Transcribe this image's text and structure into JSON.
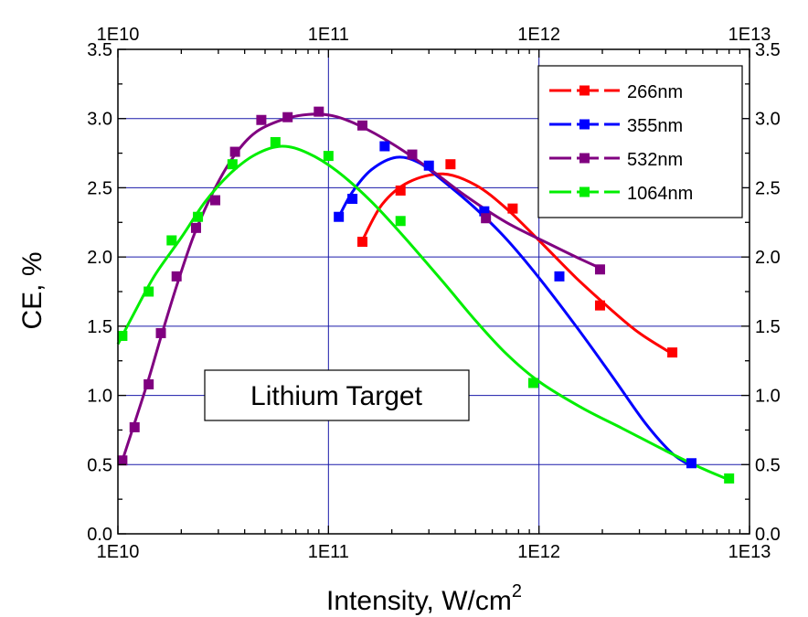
{
  "chart_data": {
    "type": "scatter",
    "title": "",
    "xlabel": "Intensity, W/cm",
    "xlabel_superscript": "2",
    "ylabel": "CE, %",
    "x_scale": "log",
    "xlim": [
      10000000000.0,
      10000000000000.0
    ],
    "ylim": [
      0,
      3.5
    ],
    "x_ticks": [
      {
        "value": 10000000000.0,
        "label": "1E10"
      },
      {
        "value": 100000000000.0,
        "label": "1E11"
      },
      {
        "value": 1000000000000.0,
        "label": "1E12"
      },
      {
        "value": 10000000000000.0,
        "label": "1E13"
      }
    ],
    "y_ticks": [
      {
        "value": 0,
        "label": "0.0"
      },
      {
        "value": 0.5,
        "label": "0.5"
      },
      {
        "value": 1.0,
        "label": "1.0"
      },
      {
        "value": 1.5,
        "label": "1.5"
      },
      {
        "value": 2.0,
        "label": "2.0"
      },
      {
        "value": 2.5,
        "label": "2.5"
      },
      {
        "value": 3.0,
        "label": "3.0"
      },
      {
        "value": 3.5,
        "label": "3.5"
      }
    ],
    "grid": true,
    "grid_color": "#1a1aaa",
    "mirror_axes": "top-and-right",
    "legend_position": "top-right",
    "annotation": "Lithium Target",
    "series": [
      {
        "name": "266nm",
        "color": "#ff0000",
        "points": [
          [
            145000000000.0,
            2.11
          ],
          [
            220000000000.0,
            2.48
          ],
          [
            380000000000.0,
            2.67
          ],
          [
            750000000000.0,
            2.35
          ],
          [
            1950000000000.0,
            1.65
          ],
          [
            4300000000000.0,
            1.31
          ]
        ],
        "fit": [
          [
            145000000000.0,
            2.12
          ],
          [
            180000000000.0,
            2.38
          ],
          [
            240000000000.0,
            2.54
          ],
          [
            350000000000.0,
            2.6
          ],
          [
            500000000000.0,
            2.52
          ],
          [
            700000000000.0,
            2.35
          ],
          [
            1000000000000.0,
            2.12
          ],
          [
            1500000000000.0,
            1.85
          ],
          [
            2200000000000.0,
            1.62
          ],
          [
            3000000000000.0,
            1.45
          ],
          [
            4300000000000.0,
            1.3
          ]
        ]
      },
      {
        "name": "355nm",
        "color": "#0000ff",
        "points": [
          [
            112000000000.0,
            2.29
          ],
          [
            130000000000.0,
            2.42
          ],
          [
            185000000000.0,
            2.8
          ],
          [
            300000000000.0,
            2.66
          ],
          [
            550000000000.0,
            2.33
          ],
          [
            1250000000000.0,
            1.86
          ],
          [
            5300000000000.0,
            0.51
          ]
        ],
        "fit": [
          [
            112000000000.0,
            2.29
          ],
          [
            130000000000.0,
            2.47
          ],
          [
            160000000000.0,
            2.63
          ],
          [
            210000000000.0,
            2.72
          ],
          [
            270000000000.0,
            2.68
          ],
          [
            350000000000.0,
            2.55
          ],
          [
            500000000000.0,
            2.35
          ],
          [
            700000000000.0,
            2.13
          ],
          [
            1000000000000.0,
            1.85
          ],
          [
            1500000000000.0,
            1.5
          ],
          [
            2200000000000.0,
            1.15
          ],
          [
            3200000000000.0,
            0.8
          ],
          [
            4300000000000.0,
            0.58
          ],
          [
            5300000000000.0,
            0.49
          ]
        ]
      },
      {
        "name": "532nm",
        "color": "#800080",
        "points": [
          [
            10500000000.0,
            0.53
          ],
          [
            12000000000.0,
            0.77
          ],
          [
            14000000000.0,
            1.08
          ],
          [
            16000000000.0,
            1.45
          ],
          [
            19000000000.0,
            1.86
          ],
          [
            23500000000.0,
            2.21
          ],
          [
            29000000000.0,
            2.41
          ],
          [
            36000000000.0,
            2.76
          ],
          [
            48000000000.0,
            2.99
          ],
          [
            64000000000.0,
            3.01
          ],
          [
            90000000000.0,
            3.05
          ],
          [
            145000000000.0,
            2.95
          ],
          [
            250000000000.0,
            2.74
          ],
          [
            560000000000.0,
            2.28
          ],
          [
            1950000000000.0,
            1.91
          ]
        ],
        "fit": [
          [
            10500000000.0,
            0.53
          ],
          [
            12000000000.0,
            0.8
          ],
          [
            14000000000.0,
            1.12
          ],
          [
            16000000000.0,
            1.42
          ],
          [
            19000000000.0,
            1.79
          ],
          [
            23000000000.0,
            2.16
          ],
          [
            29000000000.0,
            2.5
          ],
          [
            36000000000.0,
            2.74
          ],
          [
            45000000000.0,
            2.9
          ],
          [
            60000000000.0,
            2.99
          ],
          [
            80000000000.0,
            3.03
          ],
          [
            105000000000.0,
            3.02
          ],
          [
            140000000000.0,
            2.95
          ],
          [
            200000000000.0,
            2.82
          ],
          [
            300000000000.0,
            2.64
          ],
          [
            450000000000.0,
            2.44
          ],
          [
            700000000000.0,
            2.25
          ],
          [
            1100000000000.0,
            2.1
          ],
          [
            1500000000000.0,
            2.0
          ],
          [
            1950000000000.0,
            1.92
          ]
        ]
      },
      {
        "name": "1064nm",
        "color": "#00ee00",
        "points": [
          [
            10500000000.0,
            1.43
          ],
          [
            14000000000.0,
            1.75
          ],
          [
            18000000000.0,
            2.12
          ],
          [
            24000000000.0,
            2.29
          ],
          [
            35000000000.0,
            2.67
          ],
          [
            56000000000.0,
            2.83
          ],
          [
            100000000000.0,
            2.73
          ],
          [
            220000000000.0,
            2.26
          ],
          [
            940000000000.0,
            1.09
          ],
          [
            8000000000000.0,
            0.4
          ]
        ],
        "fit": [
          [
            10000000000.0,
            1.37
          ],
          [
            12000000000.0,
            1.6
          ],
          [
            15000000000.0,
            1.87
          ],
          [
            20000000000.0,
            2.14
          ],
          [
            26000000000.0,
            2.4
          ],
          [
            34000000000.0,
            2.6
          ],
          [
            45000000000.0,
            2.74
          ],
          [
            60000000000.0,
            2.8
          ],
          [
            80000000000.0,
            2.75
          ],
          [
            110000000000.0,
            2.62
          ],
          [
            160000000000.0,
            2.4
          ],
          [
            230000000000.0,
            2.14
          ],
          [
            350000000000.0,
            1.82
          ],
          [
            500000000000.0,
            1.54
          ],
          [
            700000000000.0,
            1.3
          ],
          [
            1000000000000.0,
            1.1
          ],
          [
            1600000000000.0,
            0.91
          ],
          [
            2500000000000.0,
            0.76
          ],
          [
            4000000000000.0,
            0.6
          ],
          [
            6000000000000.0,
            0.47
          ],
          [
            8000000000000.0,
            0.39
          ]
        ]
      }
    ]
  }
}
